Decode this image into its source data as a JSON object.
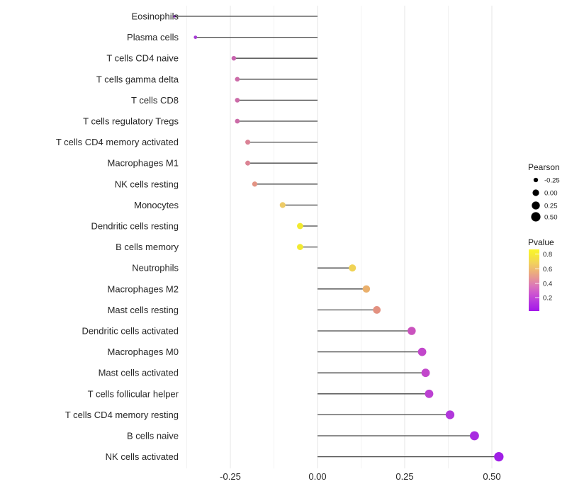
{
  "chart_data": {
    "type": "scatter",
    "variant": "lollipop",
    "title": "",
    "xlabel": "",
    "ylabel": "",
    "legend_position": "right",
    "grid": "vertical-only",
    "xlim": [
      -0.45,
      0.56
    ],
    "x_ticks": [
      "-0.25",
      "0.00",
      "0.25",
      "0.50"
    ],
    "x_tick_values": [
      -0.25,
      0,
      0.25,
      0.5
    ],
    "grid_minor_values": [
      -0.375,
      -0.125,
      0.125,
      0.375
    ],
    "points": [
      {
        "label": "Eosinophils",
        "pearson": -0.41,
        "pvalue": 0.06,
        "color": "#9B2BDF"
      },
      {
        "label": "Plasma cells",
        "pearson": -0.35,
        "pvalue": 0.1,
        "color": "#A53BD4"
      },
      {
        "label": "T cells CD4 naive",
        "pearson": -0.24,
        "pvalue": 0.28,
        "color": "#C763AE"
      },
      {
        "label": "T cells gamma delta",
        "pearson": -0.23,
        "pvalue": 0.3,
        "color": "#CC6BA8"
      },
      {
        "label": "T cells CD8",
        "pearson": -0.23,
        "pvalue": 0.3,
        "color": "#CC6BA8"
      },
      {
        "label": "T cells regulatory  Tregs",
        "pearson": -0.23,
        "pvalue": 0.3,
        "color": "#CC6BA8"
      },
      {
        "label": "T cells CD4 memory activated",
        "pearson": -0.2,
        "pvalue": 0.38,
        "color": "#DA8295"
      },
      {
        "label": "Macrophages M1",
        "pearson": -0.2,
        "pvalue": 0.38,
        "color": "#DB8494"
      },
      {
        "label": "NK cells resting",
        "pearson": -0.18,
        "pvalue": 0.44,
        "color": "#E29384"
      },
      {
        "label": "Monocytes",
        "pearson": -0.1,
        "pvalue": 0.62,
        "color": "#EDCB67"
      },
      {
        "label": "Dendritic cells resting",
        "pearson": -0.05,
        "pvalue": 0.8,
        "color": "#F2EA2F"
      },
      {
        "label": "B cells memory",
        "pearson": -0.05,
        "pvalue": 0.8,
        "color": "#F2EA2F"
      },
      {
        "label": "Neutrophils",
        "pearson": 0.1,
        "pvalue": 0.66,
        "color": "#F0D356"
      },
      {
        "label": "Macrophages M2",
        "pearson": 0.14,
        "pvalue": 0.55,
        "color": "#EAB06C"
      },
      {
        "label": "Mast cells resting",
        "pearson": 0.17,
        "pvalue": 0.44,
        "color": "#E39180"
      },
      {
        "label": "Dendritic cells activated",
        "pearson": 0.27,
        "pvalue": 0.24,
        "color": "#CA52BE"
      },
      {
        "label": "Macrophages M0",
        "pearson": 0.3,
        "pvalue": 0.2,
        "color": "#C247CB"
      },
      {
        "label": "Mast cells activated",
        "pearson": 0.31,
        "pvalue": 0.2,
        "color": "#C247CB"
      },
      {
        "label": "T cells follicular helper",
        "pearson": 0.32,
        "pvalue": 0.17,
        "color": "#BC41D2"
      },
      {
        "label": "T cells CD4 memory resting",
        "pearson": 0.38,
        "pvalue": 0.14,
        "color": "#B137DB"
      },
      {
        "label": "B cells naive",
        "pearson": 0.45,
        "pvalue": 0.1,
        "color": "#A82BE0"
      },
      {
        "label": "NK cells activated",
        "pearson": 0.52,
        "pvalue": 0.05,
        "color": "#A01FE6"
      }
    ],
    "legend": {
      "size": {
        "title": "Pearson",
        "entries": [
          "-0.25",
          "0.00",
          "0.25",
          "0.50"
        ],
        "entry_values": [
          -0.25,
          0,
          0.25,
          0.5
        ],
        "dot_color": "#000000"
      },
      "color": {
        "title": "Pvalue",
        "ticks": [
          "0.8",
          "0.6",
          "0.4",
          "0.2"
        ],
        "tick_values": [
          0.8,
          0.6,
          0.4,
          0.2
        ],
        "gradient_stops": [
          {
            "at": 0,
            "color": "#FBF62B"
          },
          {
            "at": 0.09,
            "color": "#F6EA36"
          },
          {
            "at": 0.22,
            "color": "#F2D25C"
          },
          {
            "at": 0.35,
            "color": "#EDB377"
          },
          {
            "at": 0.48,
            "color": "#E59299"
          },
          {
            "at": 0.6,
            "color": "#DA74BC"
          },
          {
            "at": 0.72,
            "color": "#CD53D0"
          },
          {
            "at": 0.85,
            "color": "#B737DF"
          },
          {
            "at": 1,
            "color": "#A316EA"
          }
        ]
      }
    },
    "colors": {
      "stem": "#474747",
      "grid_major": "#e4e4e4",
      "grid_minor": "#f2f2f2",
      "axis_text": "#262626",
      "legend_text": "#1a1a1a",
      "background": "#ffffff"
    }
  }
}
